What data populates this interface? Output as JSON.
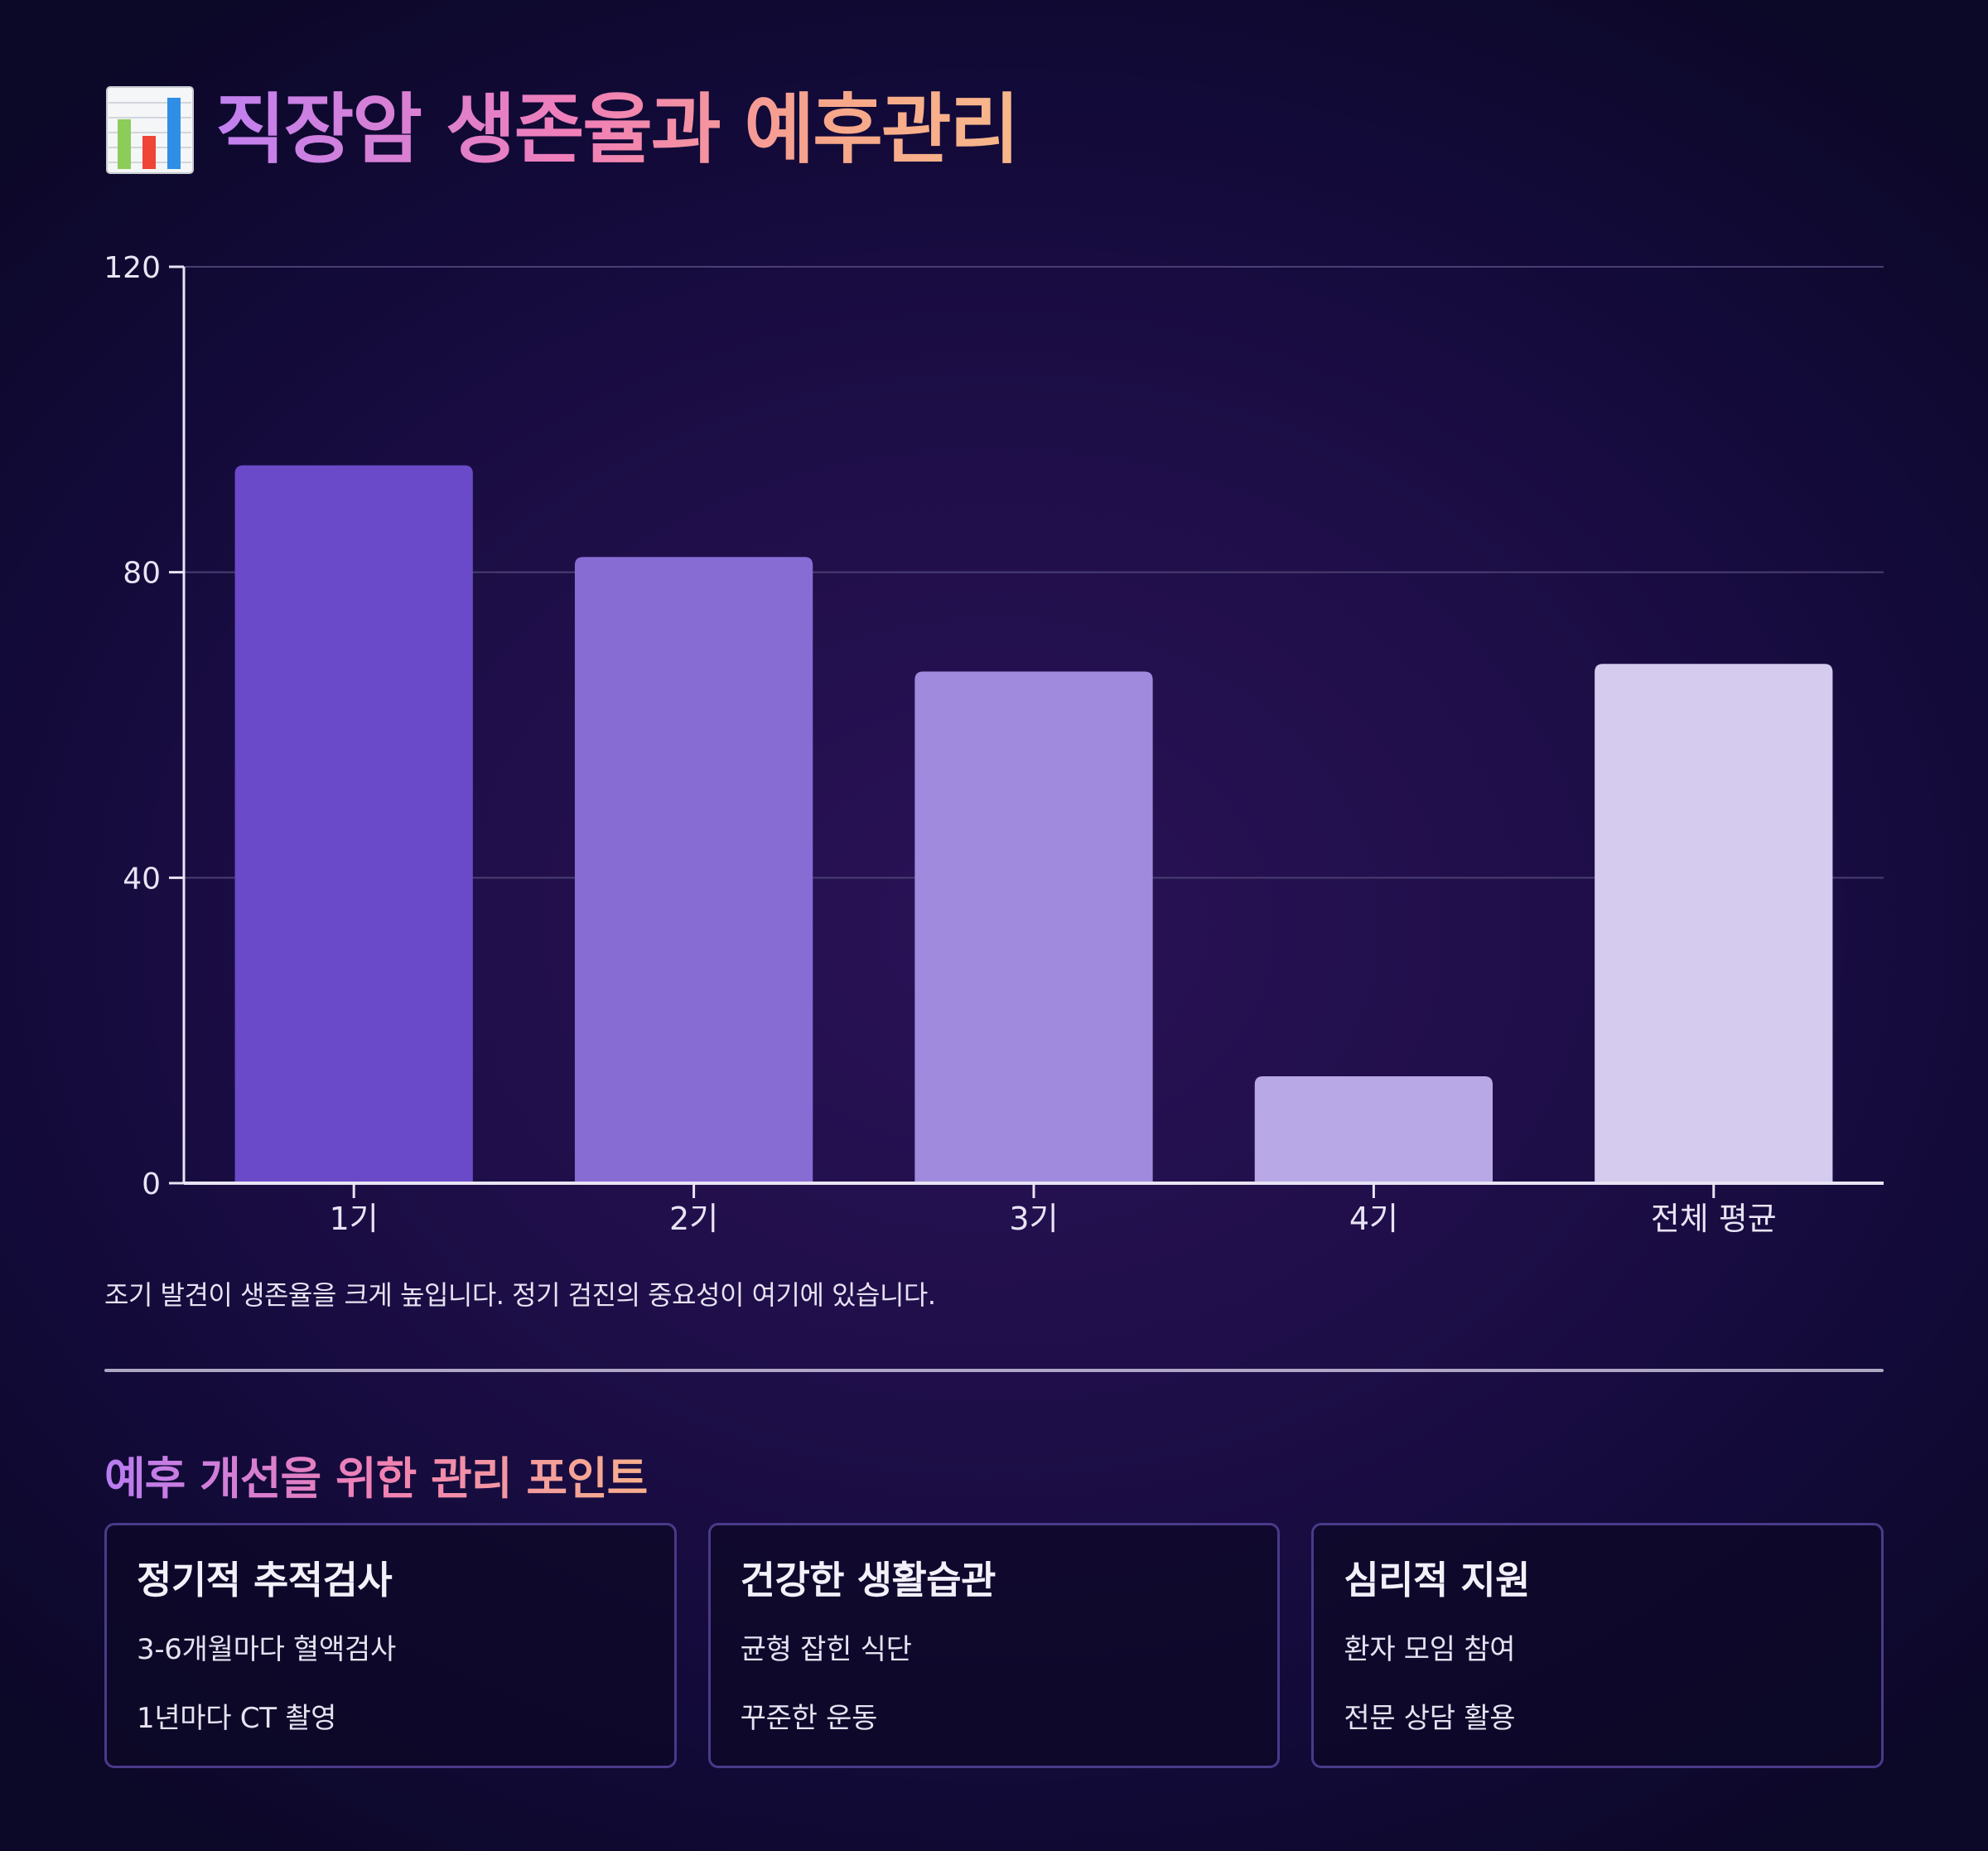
{
  "page": {
    "title": "직장암 생존율과 예후관리",
    "title_icon": "bar-chart-icon",
    "caption": "조기 발견이 생존율을 크게 높입니다. 정기 검진의 중요성이 여기에 있습니다.",
    "section_title": "예후 개선을 위한 관리 포인트"
  },
  "chart_data": {
    "type": "bar",
    "title": "",
    "xlabel": "",
    "ylabel": "",
    "categories": [
      "1기",
      "2기",
      "3기",
      "4기",
      "전체 평균"
    ],
    "values": [
      94,
      82,
      67,
      14,
      68
    ],
    "ylim": [
      0,
      120
    ],
    "yticks": [
      0,
      40,
      80,
      120
    ],
    "grid": true,
    "legend": "none",
    "bar_colors": [
      "#6a4ac8",
      "#876cd4",
      "#a08ade",
      "#b8a8e6",
      "#d4cbef"
    ]
  },
  "cards": [
    {
      "title": "정기적 추적검사",
      "items": [
        "3-6개월마다 혈액검사",
        "1년마다 CT 촬영"
      ]
    },
    {
      "title": "건강한 생활습관",
      "items": [
        "균형 잡힌 식단",
        "꾸준한 운동"
      ]
    },
    {
      "title": "심리적 지원",
      "items": [
        "환자 모임 참여",
        "전문 상담 활용"
      ]
    }
  ],
  "colors": {
    "background": "#1e0e48",
    "axis": "#e8e4f5",
    "gridline": "#4a3e72",
    "card_border": "#4a3a8a"
  }
}
